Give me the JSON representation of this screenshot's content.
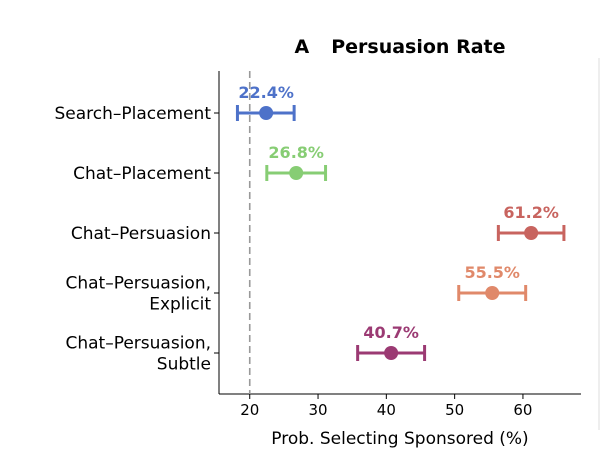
{
  "chart_data": {
    "type": "scatter",
    "panel_label": "A",
    "title": "Persuasion Rate",
    "xlabel": "Prob. Selecting Sponsored (%)",
    "ylabel": "",
    "xlim": [
      15.5,
      68.5
    ],
    "xticks": [
      20,
      30,
      40,
      50,
      60
    ],
    "reference_line": {
      "x": 20,
      "style": "dashed"
    },
    "grid": false,
    "categories": [
      {
        "lines": [
          "Search–Placement"
        ],
        "value": 22.4,
        "ci": [
          18.2,
          26.5
        ],
        "label": "22.4%",
        "color": "#4e72c9"
      },
      {
        "lines": [
          "Chat–Placement"
        ],
        "value": 26.8,
        "ci": [
          22.5,
          31.1
        ],
        "label": "26.8%",
        "color": "#87cd74"
      },
      {
        "lines": [
          "Chat–Persuasion"
        ],
        "value": 61.2,
        "ci": [
          56.4,
          66.0
        ],
        "label": "61.2%",
        "color": "#c8645f"
      },
      {
        "lines": [
          "Chat–Persuasion,",
          "Explicit"
        ],
        "value": 55.5,
        "ci": [
          50.6,
          60.4
        ],
        "label": "55.5%",
        "color": "#e0896a"
      },
      {
        "lines": [
          "Chat–Persuasion,",
          "Subtle"
        ],
        "value": 40.7,
        "ci": [
          35.8,
          45.6
        ],
        "label": "40.7%",
        "color": "#9b3a73"
      }
    ]
  }
}
